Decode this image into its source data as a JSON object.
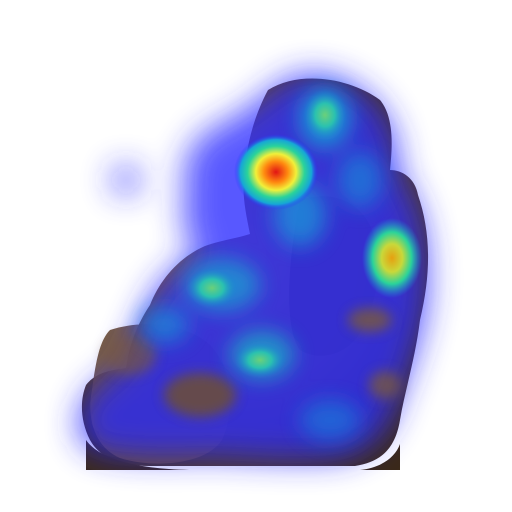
{
  "image": {
    "subject": "seated-figure-statue",
    "overlay": "attention-heatmap",
    "colormap": "jet",
    "colors": {
      "background": "#ffffff",
      "statue_dark": "#3e2c1c",
      "statue_mid": "#6d5034",
      "statue_light": "#8d6c4a",
      "heat_low": "#2b2bff",
      "heat_mid_low": "#16a7d6",
      "heat_mid": "#2ad39a",
      "heat_mid_high": "#f1f03a",
      "heat_high": "#e11414"
    }
  }
}
